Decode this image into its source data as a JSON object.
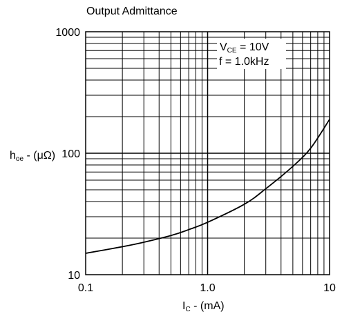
{
  "chart_data": {
    "type": "line",
    "title": "Output Admittance",
    "xlabel": {
      "main": "I",
      "sub": "C",
      "rest": " - (mA)"
    },
    "ylabel": {
      "main": "h",
      "sub": "oe",
      "rest": " - (μΩ)"
    },
    "x_scale": "log",
    "y_scale": "log",
    "xlim": [
      0.1,
      10
    ],
    "ylim": [
      10,
      1000
    ],
    "x_ticks": [
      {
        "value": 0.1,
        "label": "0.1"
      },
      {
        "value": 1,
        "label": "1.0"
      },
      {
        "value": 10,
        "label": "10"
      }
    ],
    "y_ticks": [
      {
        "value": 10,
        "label": "10"
      },
      {
        "value": 100,
        "label": "100"
      },
      {
        "value": 1000,
        "label": "1000"
      }
    ],
    "grid": true,
    "annotations": [
      {
        "main": "V",
        "sub": "CE",
        "rest": " = 10V"
      },
      {
        "main": "f = 1.0kHz",
        "sub": "",
        "rest": ""
      }
    ],
    "series": [
      {
        "x": [
          0.1,
          0.2,
          0.3,
          0.5,
          0.7,
          1.0,
          2.0,
          3.0,
          5.0,
          7.0,
          10.0
        ],
        "y": [
          15,
          17,
          18.5,
          21,
          23.5,
          27,
          38,
          51,
          78,
          110,
          190
        ]
      }
    ]
  }
}
